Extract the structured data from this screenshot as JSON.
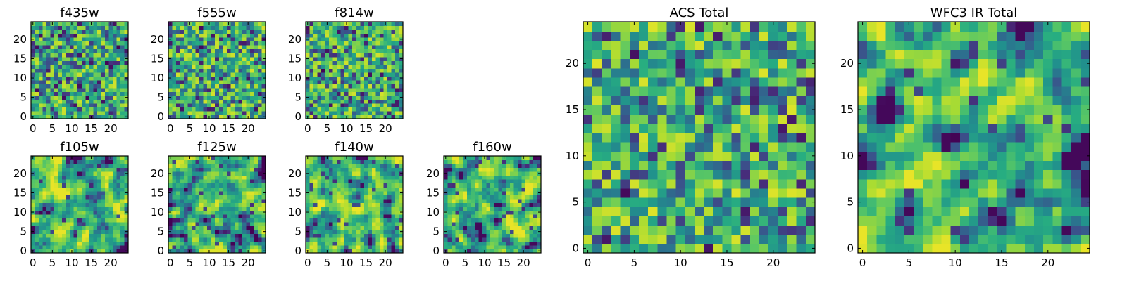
{
  "figure": {
    "description_free": true
  },
  "chart_data": [
    {
      "id": "f435w",
      "type": "heatmap",
      "title": "f435w",
      "grid_shape": [
        25,
        25
      ],
      "colormap": "viridis",
      "xlim": [
        -0.5,
        24.5
      ],
      "ylim": [
        -0.5,
        24.5
      ],
      "xticks": [
        "0",
        "5",
        "10",
        "15",
        "20"
      ],
      "yticks": [
        "0",
        "5",
        "10",
        "15",
        "20"
      ],
      "texture": "fine-noise",
      "seed": 11,
      "mean_level": 0.62
    },
    {
      "id": "f555w",
      "type": "heatmap",
      "title": "f555w",
      "grid_shape": [
        25,
        25
      ],
      "colormap": "viridis",
      "xlim": [
        -0.5,
        24.5
      ],
      "ylim": [
        -0.5,
        24.5
      ],
      "xticks": [
        "0",
        "5",
        "10",
        "15",
        "20"
      ],
      "yticks": [
        "0",
        "5",
        "10",
        "15",
        "20"
      ],
      "texture": "fine-noise",
      "seed": 23,
      "mean_level": 0.64
    },
    {
      "id": "f814w",
      "type": "heatmap",
      "title": "f814w",
      "grid_shape": [
        25,
        25
      ],
      "colormap": "viridis",
      "xlim": [
        -0.5,
        24.5
      ],
      "ylim": [
        -0.5,
        24.5
      ],
      "xticks": [
        "0",
        "5",
        "10",
        "15",
        "20"
      ],
      "yticks": [
        "0",
        "5",
        "10",
        "15",
        "20"
      ],
      "texture": "fine-noise",
      "seed": 37,
      "mean_level": 0.63
    },
    {
      "id": "f105w",
      "type": "heatmap",
      "title": "f105w",
      "grid_shape": [
        25,
        25
      ],
      "colormap": "viridis",
      "xlim": [
        -0.5,
        24.5
      ],
      "ylim": [
        -0.5,
        24.5
      ],
      "xticks": [
        "0",
        "5",
        "10",
        "15",
        "20"
      ],
      "yticks": [
        "0",
        "5",
        "10",
        "15",
        "20"
      ],
      "texture": "smooth-noise",
      "seed": 41,
      "mean_level": 0.7
    },
    {
      "id": "f125w",
      "type": "heatmap",
      "title": "f125w",
      "grid_shape": [
        25,
        25
      ],
      "colormap": "viridis",
      "xlim": [
        -0.5,
        24.5
      ],
      "ylim": [
        -0.5,
        24.5
      ],
      "xticks": [
        "0",
        "5",
        "10",
        "15",
        "20"
      ],
      "yticks": [
        "0",
        "5",
        "10",
        "15",
        "20"
      ],
      "texture": "smooth-noise",
      "seed": 53,
      "mean_level": 0.66
    },
    {
      "id": "f140w",
      "type": "heatmap",
      "title": "f140w",
      "grid_shape": [
        25,
        25
      ],
      "colormap": "viridis",
      "xlim": [
        -0.5,
        24.5
      ],
      "ylim": [
        -0.5,
        24.5
      ],
      "xticks": [
        "0",
        "5",
        "10",
        "15",
        "20"
      ],
      "yticks": [
        "0",
        "5",
        "10",
        "15",
        "20"
      ],
      "texture": "smooth-noise",
      "seed": 67,
      "mean_level": 0.72
    },
    {
      "id": "f160w",
      "type": "heatmap",
      "title": "f160w",
      "grid_shape": [
        25,
        25
      ],
      "colormap": "viridis",
      "xlim": [
        -0.5,
        24.5
      ],
      "ylim": [
        -0.5,
        24.5
      ],
      "xticks": [
        "0",
        "5",
        "10",
        "15",
        "20"
      ],
      "yticks": [
        "0",
        "5",
        "10",
        "15",
        "20"
      ],
      "texture": "smooth-noise",
      "seed": 79,
      "mean_level": 0.7
    },
    {
      "id": "acs-total",
      "type": "heatmap",
      "title": "ACS Total",
      "grid_shape": [
        25,
        25
      ],
      "colormap": "viridis",
      "xlim": [
        -0.5,
        24.5
      ],
      "ylim": [
        -0.5,
        24.5
      ],
      "xticks": [
        "0",
        "5",
        "10",
        "15",
        "20"
      ],
      "yticks": [
        "0",
        "5",
        "10",
        "15",
        "20"
      ],
      "texture": "fine-noise",
      "seed": 97,
      "mean_level": 0.66
    },
    {
      "id": "wfc3-ir-total",
      "type": "heatmap",
      "title": "WFC3 IR Total",
      "grid_shape": [
        25,
        25
      ],
      "colormap": "viridis",
      "xlim": [
        -0.5,
        24.5
      ],
      "ylim": [
        -0.5,
        24.5
      ],
      "xticks": [
        "0",
        "5",
        "10",
        "15",
        "20"
      ],
      "yticks": [
        "0",
        "5",
        "10",
        "15",
        "20"
      ],
      "texture": "smooth-noise",
      "seed": 113,
      "mean_level": 0.7
    }
  ]
}
